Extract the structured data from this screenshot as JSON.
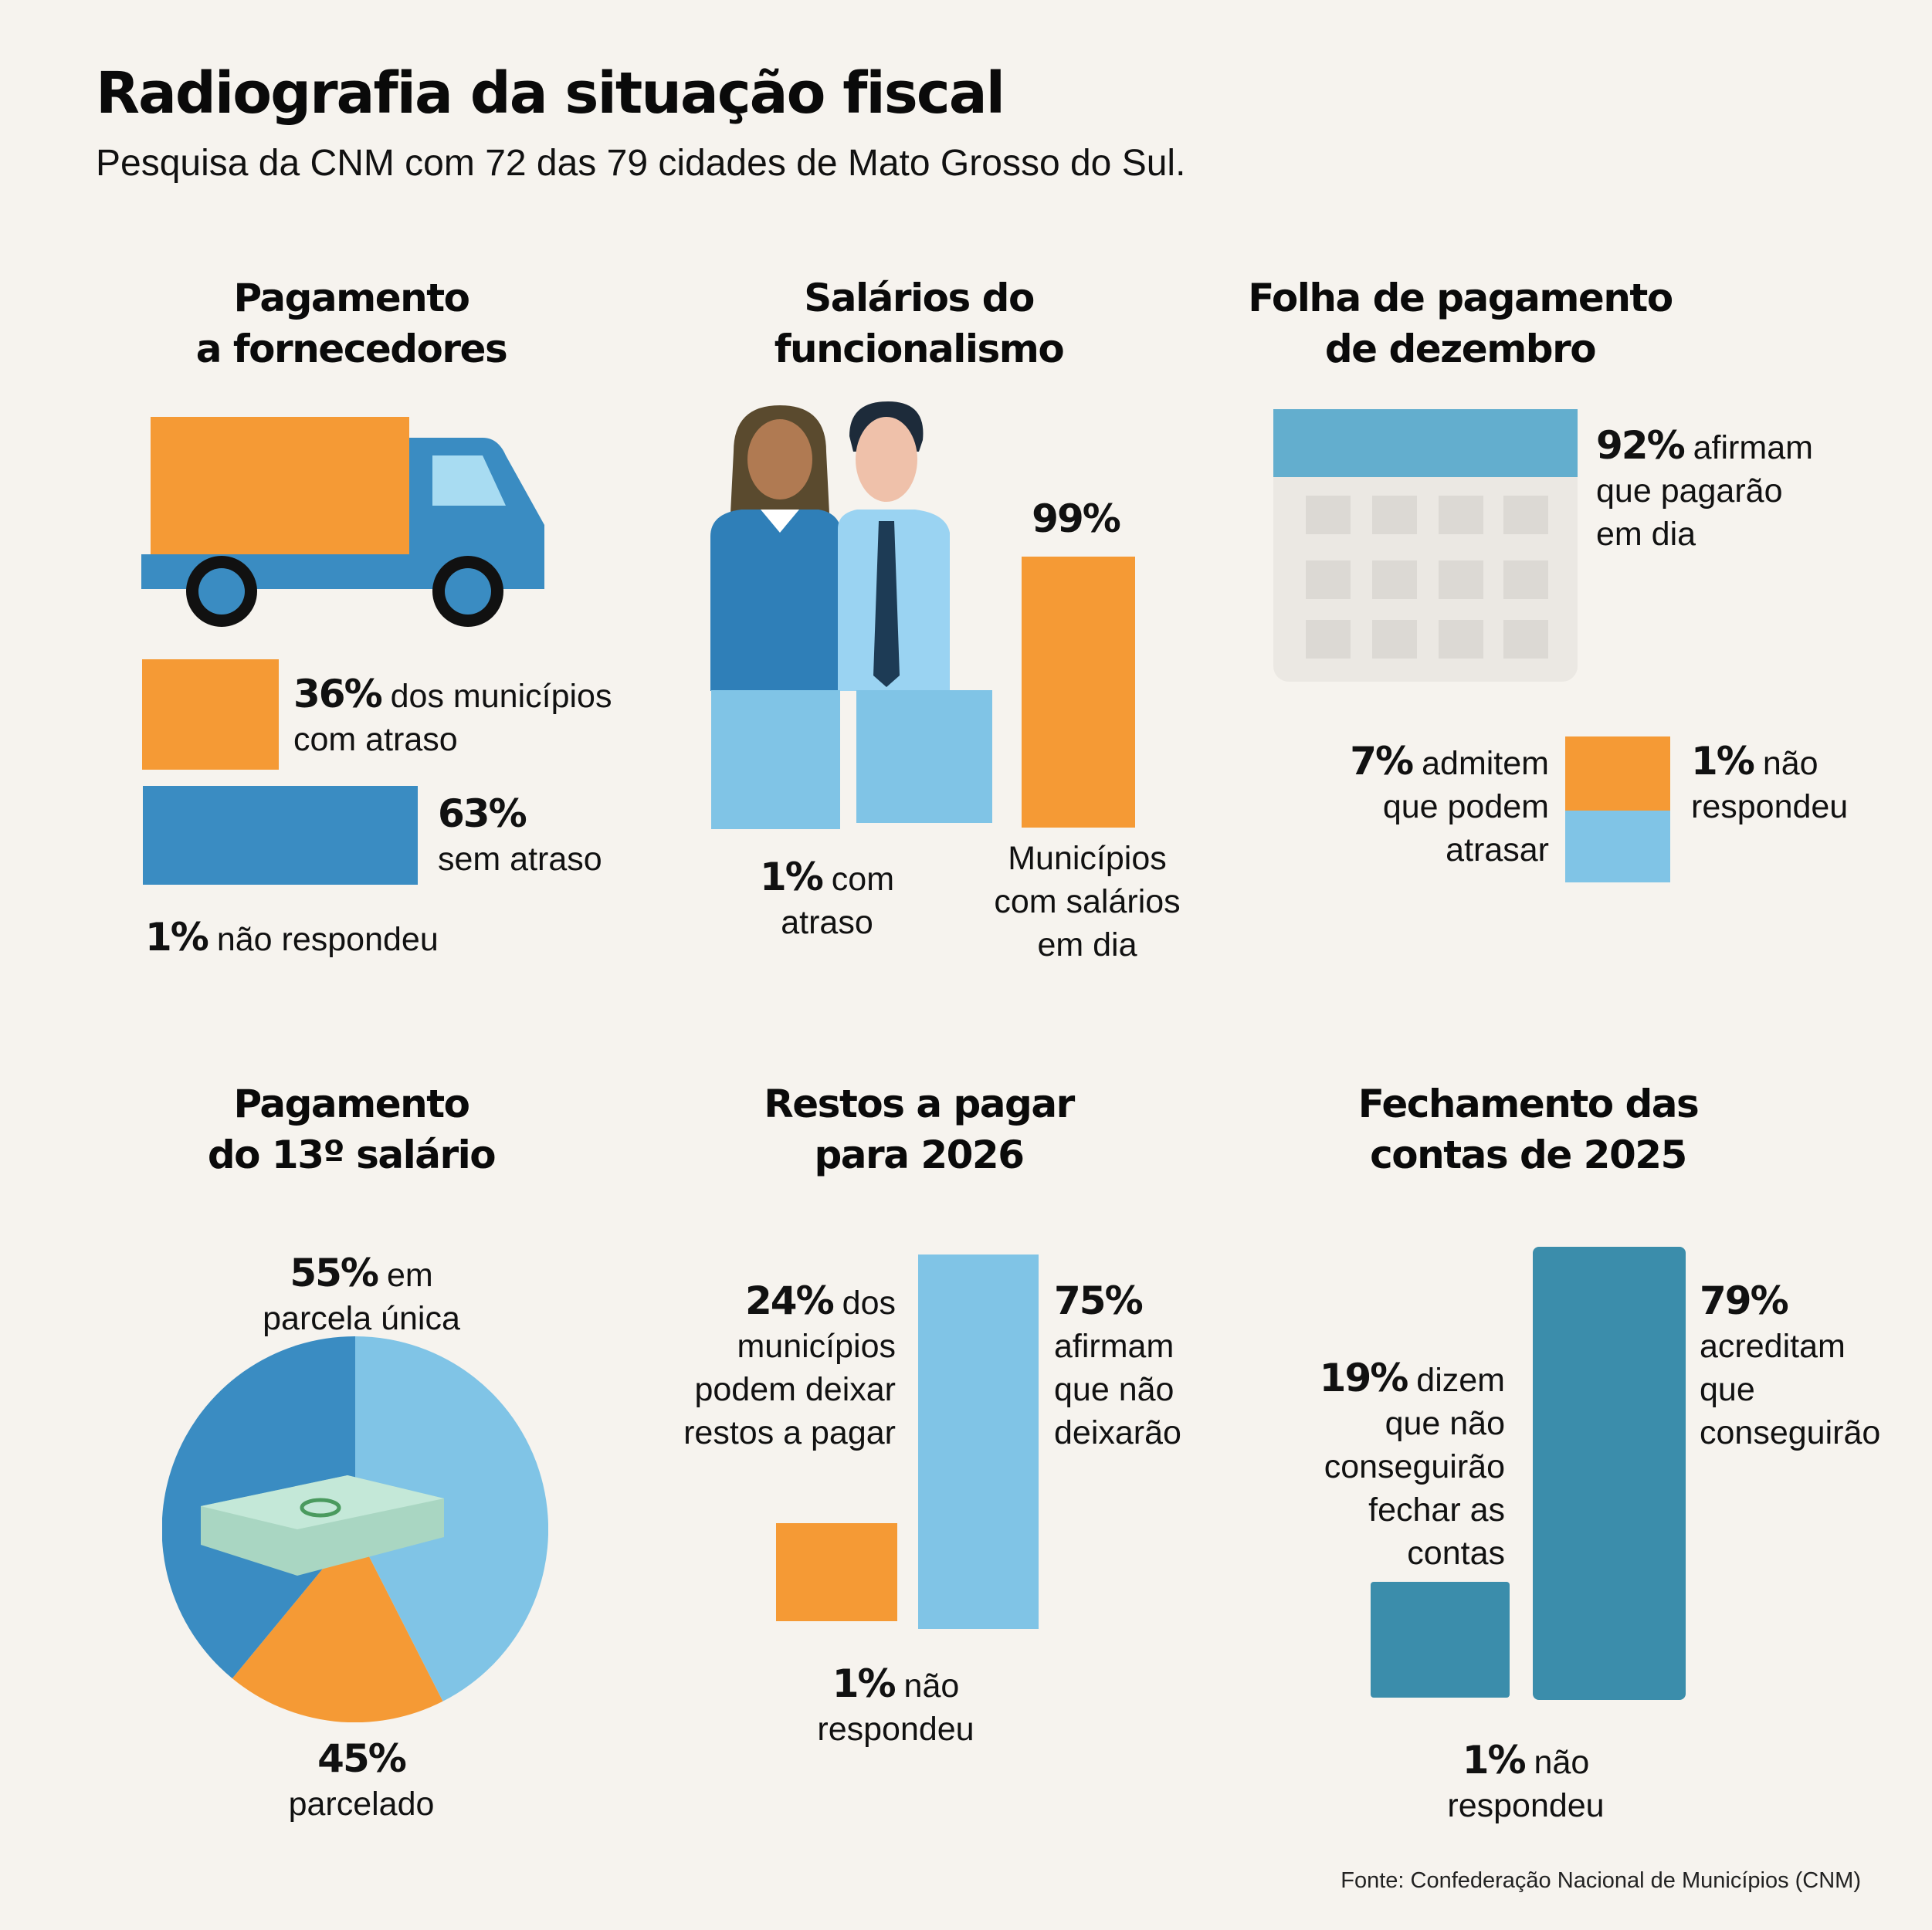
{
  "header": {
    "title": "Radiografia da situação fiscal",
    "subtitle": "Pesquisa da CNM com 72 das 79 cidades de Mato Grosso do Sul."
  },
  "colors": {
    "orange": "#f59a35",
    "blue": "#3a8cc2",
    "light_blue": "#80c4e6",
    "teal": "#3b8dab",
    "background": "#f6f3ee"
  },
  "fornecedores": {
    "title": [
      "Pagamento",
      "a fornecedores"
    ],
    "atraso": {
      "pct": "36%",
      "lines": [
        "dos municípios",
        "com atraso"
      ]
    },
    "sem_atraso": {
      "pct": "63%",
      "lines": [
        "sem atraso"
      ]
    },
    "nao_respondeu": {
      "pct": "1%",
      "lines": [
        "não respondeu"
      ]
    }
  },
  "salarios": {
    "title": [
      "Salários do",
      "funcionalismo"
    ],
    "em_dia": {
      "pct": "99%",
      "lines": [
        "Municípios",
        "com salários",
        "em dia"
      ]
    },
    "atraso": {
      "pct": "1%",
      "lines": [
        "com",
        "atraso"
      ]
    }
  },
  "folha": {
    "title": [
      "Folha de pagamento",
      "de dezembro"
    ],
    "em_dia": {
      "pct": "92%",
      "lines": [
        "afirmam",
        "que pagarão",
        "em dia"
      ]
    },
    "atrasar": {
      "pct": "7%",
      "lines": [
        "admitem",
        "que podem",
        "atrasar"
      ]
    },
    "nao_respondeu": {
      "pct": "1%",
      "lines": [
        "não",
        "respondeu"
      ]
    }
  },
  "decimo": {
    "title": [
      "Pagamento",
      "do 13º salário"
    ],
    "unica": {
      "pct": "55%",
      "lines": [
        "em",
        "parcela única"
      ]
    },
    "parcelado": {
      "pct": "45%",
      "lines": [
        "parcelado"
      ]
    }
  },
  "restos": {
    "title": [
      "Restos a pagar",
      "para 2026"
    ],
    "deixar": {
      "pct": "24%",
      "lines": [
        "dos",
        "municípios",
        "podem deixar",
        "restos a pagar"
      ]
    },
    "nao_deixarao": {
      "pct": "75%",
      "lines": [
        "afirmam",
        "que não",
        "deixarão"
      ]
    },
    "nao_respondeu": {
      "pct": "1%",
      "lines": [
        "não",
        "respondeu"
      ]
    }
  },
  "fechamento": {
    "title": [
      "Fechamento das",
      "contas de 2025"
    ],
    "nao": {
      "pct": "19%",
      "lines": [
        "dizem",
        "que não",
        "conseguirão",
        "fechar as",
        "contas"
      ]
    },
    "sim": {
      "pct": "79%",
      "lines": [
        "acreditam",
        "que",
        "conseguirão"
      ]
    },
    "nao_respondeu": {
      "pct": "1%",
      "lines": [
        "não",
        "respondeu"
      ]
    }
  },
  "source": "Fonte: Confederação Nacional de Municípios (CNM)"
}
